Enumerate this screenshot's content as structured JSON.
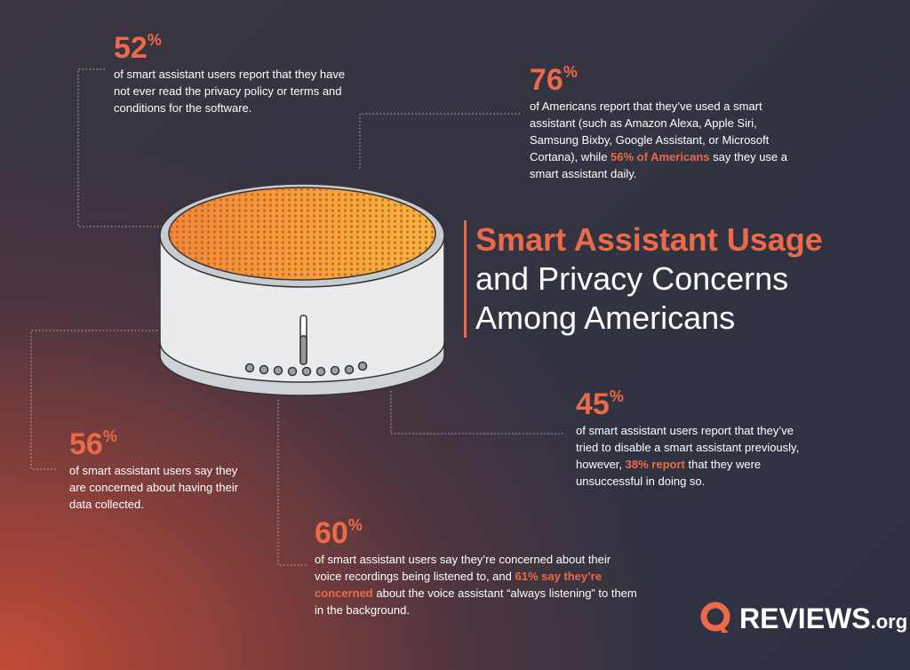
{
  "title": {
    "lines": [
      "Smart Assistant Usage",
      "and Privacy Concerns",
      "Among Americans"
    ]
  },
  "stats": [
    {
      "number": "52",
      "unit": "%",
      "segments": [
        {
          "text": "of smart assistant users report that they have not ever read the privacy policy or terms and conditions for the software.",
          "highlight": false
        }
      ]
    },
    {
      "number": "76",
      "unit": "%",
      "segments": [
        {
          "text": "of Americans report that they’ve used a smart assistant (such as Amazon Alexa, Apple Siri, Samsung Bixby, Google Assistant, or Microsoft Cortana), while ",
          "highlight": false
        },
        {
          "text": "56% of Americans",
          "highlight": true
        },
        {
          "text": " say they use a smart assistant daily.",
          "highlight": false
        }
      ]
    },
    {
      "number": "45",
      "unit": "%",
      "segments": [
        {
          "text": "of smart assistant users report that they’ve tried to disable a smart assistant previously, however, ",
          "highlight": false
        },
        {
          "text": "38% report",
          "highlight": true
        },
        {
          "text": " that they were unsuccessful in doing so.",
          "highlight": false
        }
      ]
    },
    {
      "number": "56",
      "unit": "%",
      "segments": [
        {
          "text": "of smart assistant users say they are concerned about having their data collected.",
          "highlight": false
        }
      ]
    },
    {
      "number": "60",
      "unit": "%",
      "segments": [
        {
          "text": "of smart assistant users say they’re concerned about their voice recordings being listened to, and ",
          "highlight": false
        },
        {
          "text": "61% say they’re concerned",
          "highlight": true
        },
        {
          "text": " about the voice assistant “always listening” to them in the background.",
          "highlight": false
        }
      ]
    }
  ],
  "logo": {
    "brand": "REVIEWS",
    "suffix": ".org"
  }
}
